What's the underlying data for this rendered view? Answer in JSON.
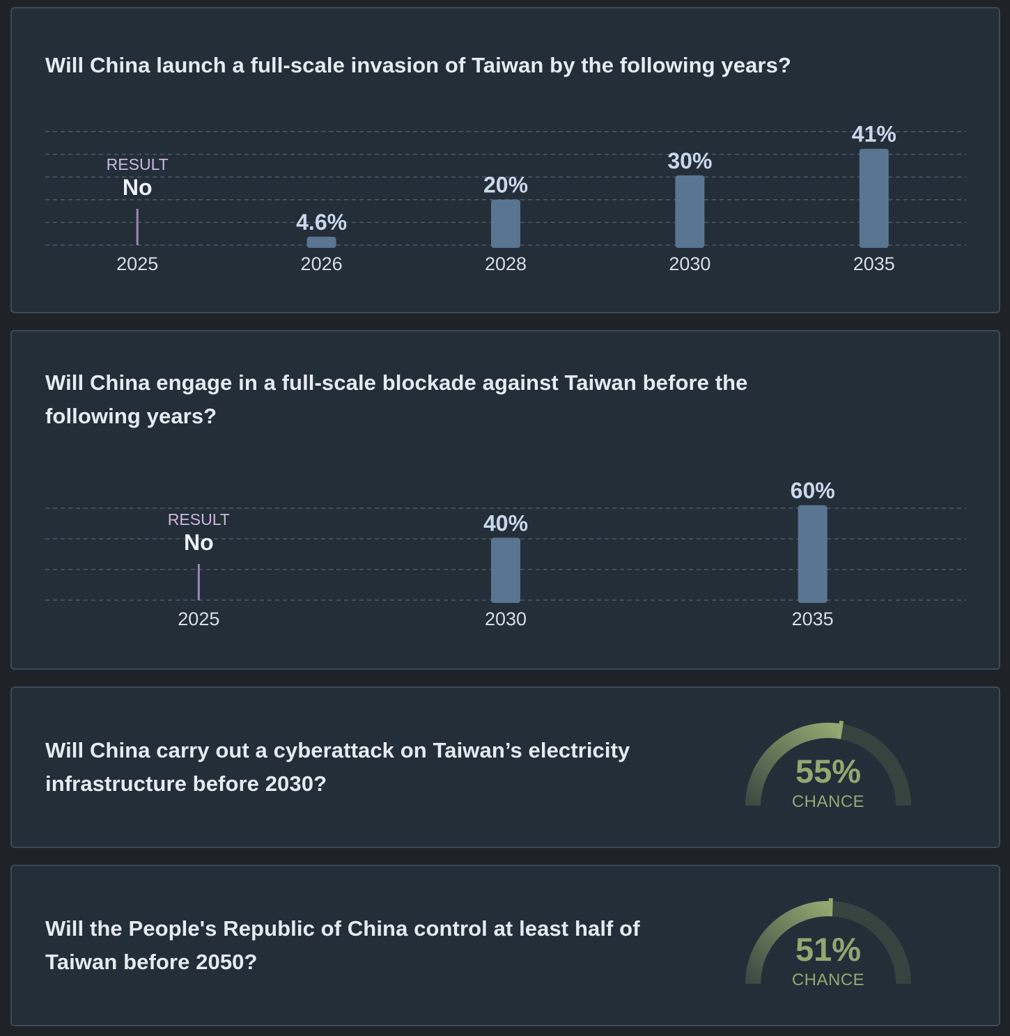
{
  "colors": {
    "background": "#1f2328",
    "card": "#242e38",
    "card_border": "#3b4a5b",
    "question_text": "#e6ebf1",
    "bar": "#5a7591",
    "bar_label": "#c9d8ec",
    "year_label": "#d6dde6",
    "grid": "#4b5968",
    "result_line": "#9d86b5",
    "result_label": "#c8b8dc",
    "gauge_track": "#36433f",
    "gauge_fill": "#93a771",
    "gauge_text": "#93a771"
  },
  "cards": [
    {
      "question": "Will China launch a full-scale invasion of Taiwan by the following years?"
    },
    {
      "question": "Will China engage in a full-scale blockade against Taiwan before the following years?"
    },
    {
      "question": "Will China carry out a cyberattack on Taiwan’s electricity infrastructure before 2030?",
      "gauge": {
        "value": 55,
        "display": "55%",
        "label": "CHANCE"
      }
    },
    {
      "question": "Will the People's Republic of China control at least half of Taiwan before 2050?",
      "gauge": {
        "value": 51,
        "display": "51%",
        "label": "CHANCE"
      }
    }
  ],
  "chart_data": [
    {
      "type": "bar",
      "title": "Will China launch a full-scale invasion of Taiwan by the following years?",
      "categories": [
        "2025",
        "2026",
        "2028",
        "2030",
        "2035"
      ],
      "values": [
        null,
        4.6,
        20,
        30,
        41
      ],
      "labels": [
        "No",
        "4.6%",
        "20%",
        "30%",
        "41%"
      ],
      "resolved": [
        {
          "category": "2025",
          "result_label": "RESULT",
          "result": "No"
        }
      ],
      "ylim": [
        0,
        50
      ],
      "grid": true,
      "xlabel": "",
      "ylabel": ""
    },
    {
      "type": "bar",
      "title": "Will China engage in a full-scale blockade against Taiwan before the following years?",
      "categories": [
        "2025",
        "2030",
        "2035"
      ],
      "values": [
        null,
        40,
        60
      ],
      "labels": [
        "No",
        "40%",
        "60%"
      ],
      "resolved": [
        {
          "category": "2025",
          "result_label": "RESULT",
          "result": "No"
        }
      ],
      "ylim": [
        0,
        60
      ],
      "grid": true,
      "xlabel": "",
      "ylabel": ""
    }
  ]
}
